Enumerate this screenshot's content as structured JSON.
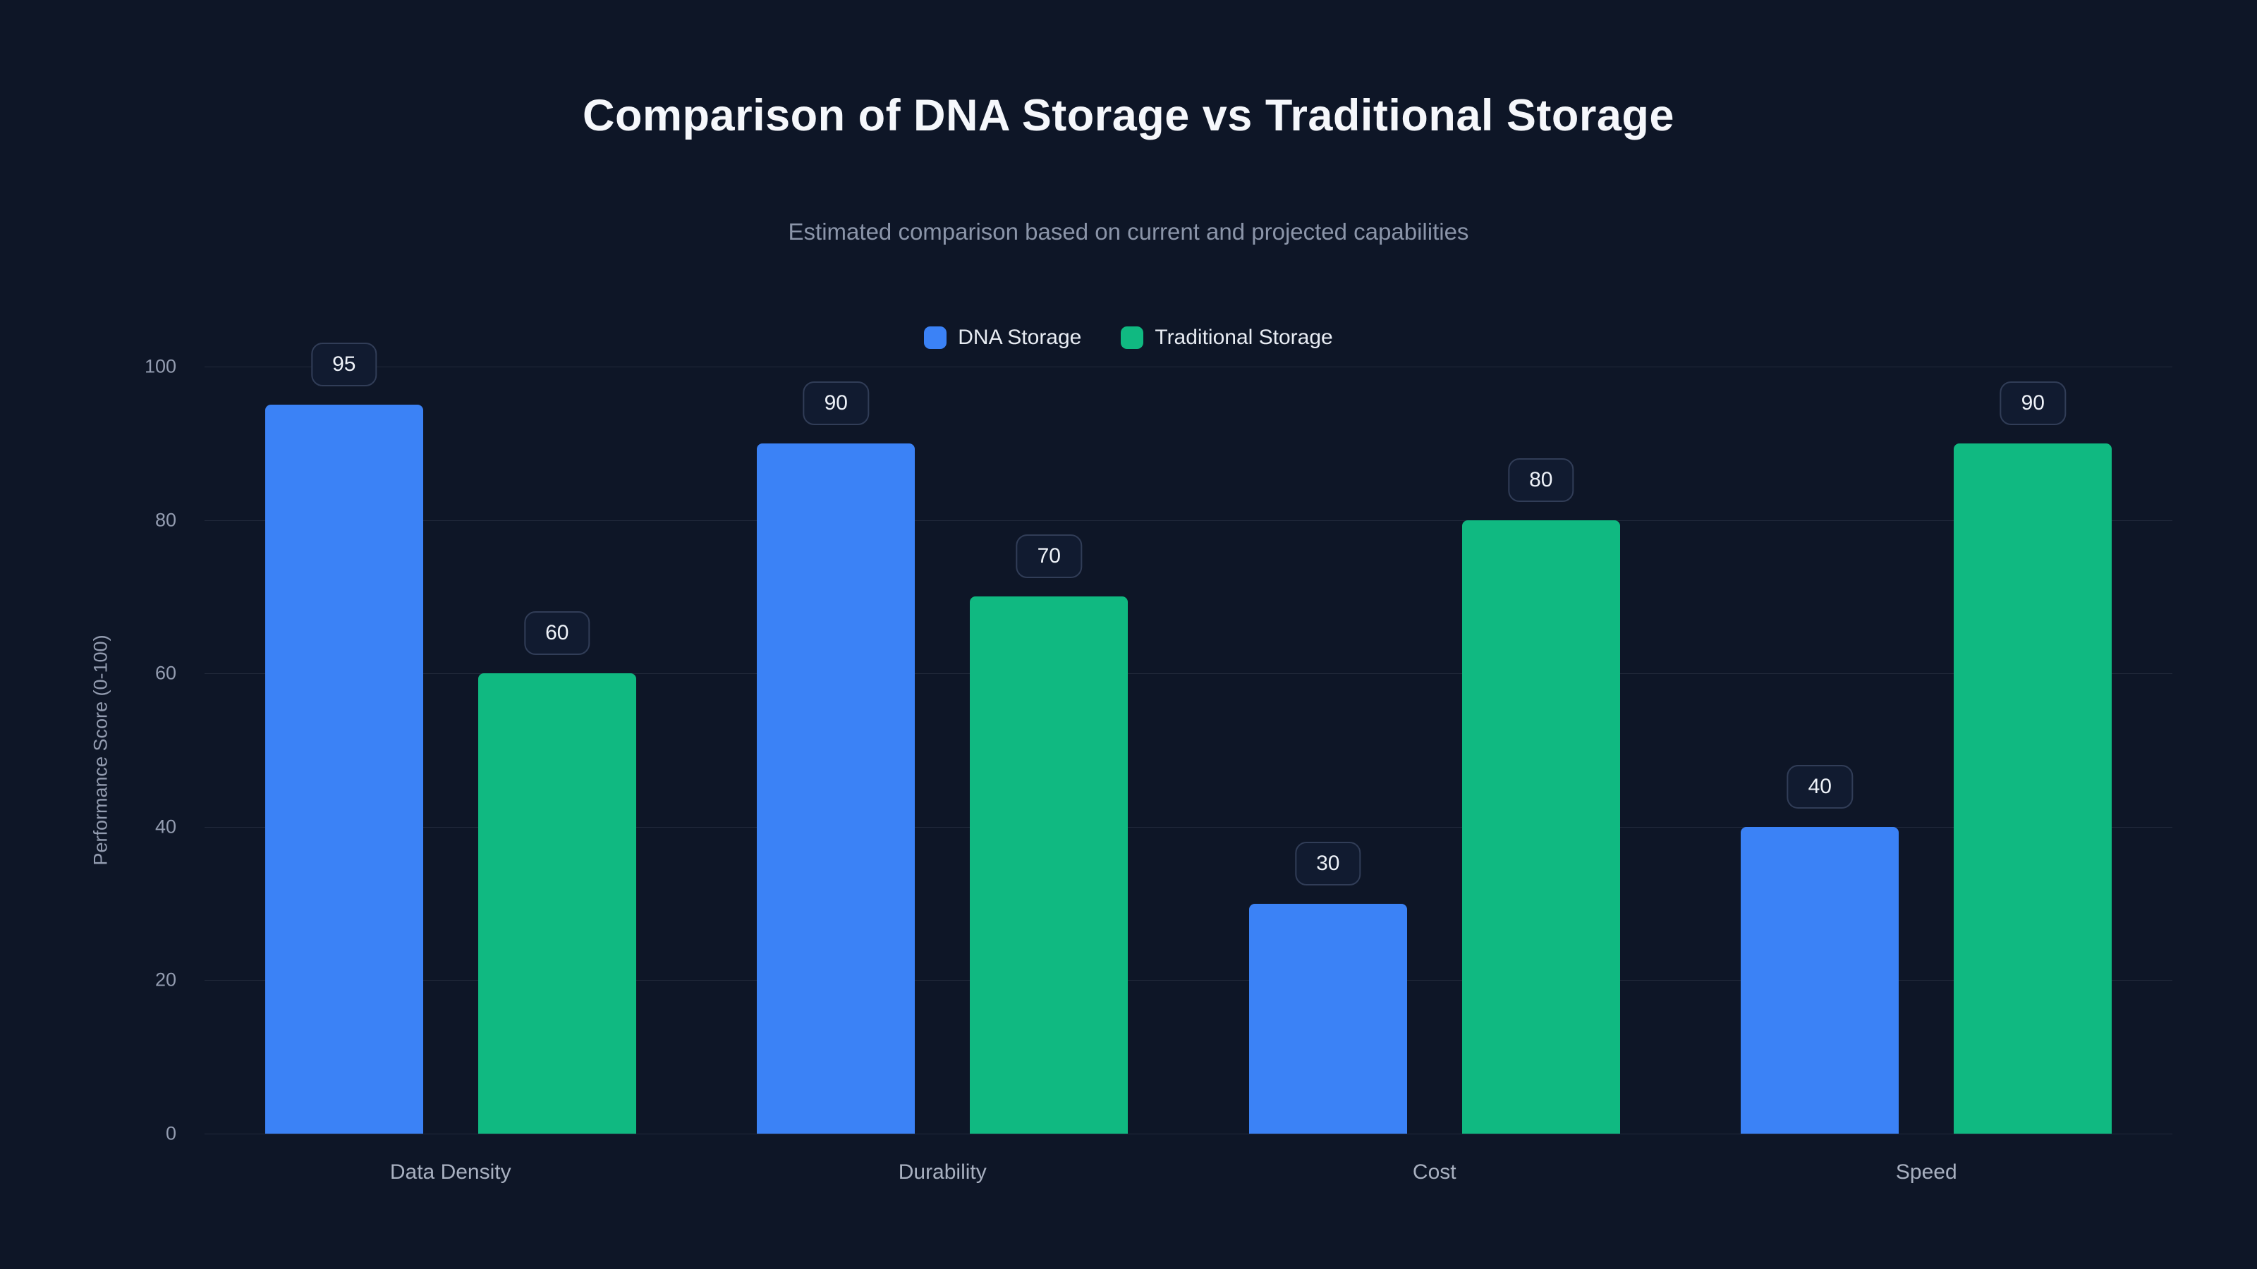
{
  "page": {
    "title": "Comparison of DNA Storage vs Traditional Storage",
    "subtitle": "Estimated comparison based on current and projected capabilities"
  },
  "colors": {
    "background": "#0e1627",
    "dna_blue": "#3b82f6",
    "traditional_green": "#10b981",
    "grid": "rgba(148,163,184,0.14)",
    "badge_border": "#313d57",
    "text_primary": "#f5f7fb",
    "text_muted": "#8b95a9"
  },
  "chart_data": {
    "type": "bar",
    "title": "Comparison of DNA Storage vs Traditional Storage",
    "subtitle": "Estimated comparison based on current and projected capabilities",
    "categories": [
      "Data Density",
      "Durability",
      "Cost",
      "Speed"
    ],
    "series": [
      {
        "name": "DNA Storage",
        "color": "#3b82f6",
        "values": [
          95,
          90,
          30,
          40
        ]
      },
      {
        "name": "Traditional Storage",
        "color": "#10b981",
        "values": [
          60,
          70,
          80,
          90
        ]
      }
    ],
    "xlabel": "",
    "ylabel": "Performance Score (0-100)",
    "ylim": [
      0,
      100
    ],
    "yticks": [
      0,
      20,
      40,
      60,
      80,
      100
    ],
    "grid": true,
    "legend_position": "top",
    "value_labels": true
  }
}
